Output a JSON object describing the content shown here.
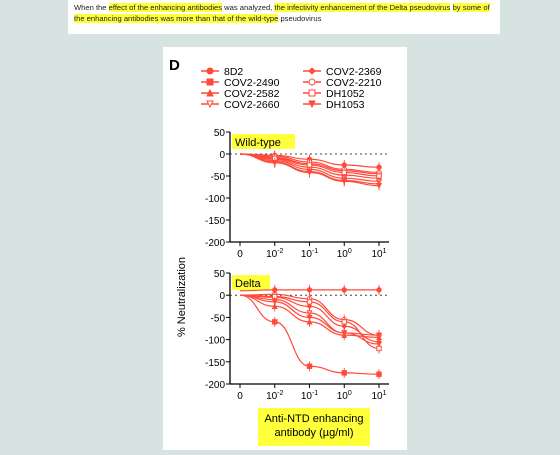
{
  "caption": {
    "segments": [
      {
        "text": "When the ",
        "hl": false
      },
      {
        "text": "effect of the enhancing antibodies",
        "hl": true
      },
      {
        "text": " was analyzed, ",
        "hl": false
      },
      {
        "text": "the infectivity enhancement of the Delta pseudovirus",
        "hl": true
      },
      {
        "text": " ",
        "hl": false
      },
      {
        "text": "by some of the enhancing antibodies was more than that of the wild-type",
        "hl": true
      },
      {
        "text": " pseudovirus",
        "hl": false
      }
    ]
  },
  "figure": {
    "panel_letter": "D",
    "ylabel": "% Neutralization",
    "xlabel_line1": "Anti-NTD enhancing",
    "xlabel_line2": "antibody (µg/ml)",
    "highlight_color": "#ffff3a",
    "line_color": "#ff4a3a",
    "legend": [
      {
        "name": "8D2",
        "marker": "circle-filled"
      },
      {
        "name": "COV2-2490",
        "marker": "square-filled"
      },
      {
        "name": "COV2-2582",
        "marker": "triangle-up-filled"
      },
      {
        "name": "COV2-2660",
        "marker": "triangle-down-open"
      },
      {
        "name": "COV2-2369",
        "marker": "diamond-filled"
      },
      {
        "name": "COV2-2210",
        "marker": "circle-open"
      },
      {
        "name": "DH1052",
        "marker": "square-open"
      },
      {
        "name": "DH1053",
        "marker": "triangle-down-filled"
      }
    ]
  },
  "chart_data": [
    {
      "type": "line",
      "title": "Wild-type",
      "xscale": "log",
      "x_tick_labels": [
        "0",
        "10-2",
        "10-1",
        "100",
        "101"
      ],
      "x": [
        0.003,
        0.03,
        0.3,
        3,
        30
      ],
      "ylim": [
        -200,
        50
      ],
      "y_ticks": [
        50,
        0,
        -50,
        -100,
        -150,
        -200
      ],
      "reference_line_y": 0,
      "series": [
        {
          "name": "8D2",
          "values": [
            0,
            -3,
            -12,
            -25,
            -30
          ]
        },
        {
          "name": "COV2-2490",
          "values": [
            0,
            -8,
            -22,
            -38,
            -45
          ]
        },
        {
          "name": "COV2-2582",
          "values": [
            0,
            -12,
            -30,
            -48,
            -55
          ]
        },
        {
          "name": "COV2-2660",
          "values": [
            0,
            -15,
            -35,
            -55,
            -62
          ]
        },
        {
          "name": "COV2-2369",
          "values": [
            0,
            -18,
            -40,
            -60,
            -68
          ]
        },
        {
          "name": "COV2-2210",
          "values": [
            0,
            -5,
            -18,
            -35,
            -42
          ]
        },
        {
          "name": "DH1052",
          "values": [
            0,
            -10,
            -25,
            -42,
            -50
          ]
        },
        {
          "name": "DH1053",
          "values": [
            0,
            -20,
            -42,
            -62,
            -72
          ]
        }
      ]
    },
    {
      "type": "line",
      "title": "Delta",
      "xscale": "log",
      "x_tick_labels": [
        "0",
        "10-2",
        "10-1",
        "100",
        "101"
      ],
      "x": [
        0.003,
        0.03,
        0.3,
        3,
        30
      ],
      "ylim": [
        -200,
        50
      ],
      "y_ticks": [
        50,
        0,
        -50,
        -100,
        -150,
        -200
      ],
      "reference_line_y": 0,
      "series": [
        {
          "name": "8D2",
          "values": [
            10,
            12,
            12,
            12,
            12
          ]
        },
        {
          "name": "COV2-2490",
          "values": [
            0,
            -60,
            -160,
            -175,
            -178
          ]
        },
        {
          "name": "COV2-2582",
          "values": [
            0,
            -25,
            -60,
            -90,
            -95
          ]
        },
        {
          "name": "COV2-2660",
          "values": [
            0,
            -10,
            -40,
            -85,
            -110
          ]
        },
        {
          "name": "COV2-2369",
          "values": [
            0,
            -5,
            -25,
            -70,
            -105
          ]
        },
        {
          "name": "COV2-2210",
          "values": [
            0,
            2,
            -8,
            -55,
            -90
          ]
        },
        {
          "name": "DH1052",
          "values": [
            0,
            -3,
            -15,
            -60,
            -120
          ]
        },
        {
          "name": "DH1053",
          "values": [
            0,
            -15,
            -50,
            -85,
            -90
          ]
        }
      ]
    }
  ]
}
